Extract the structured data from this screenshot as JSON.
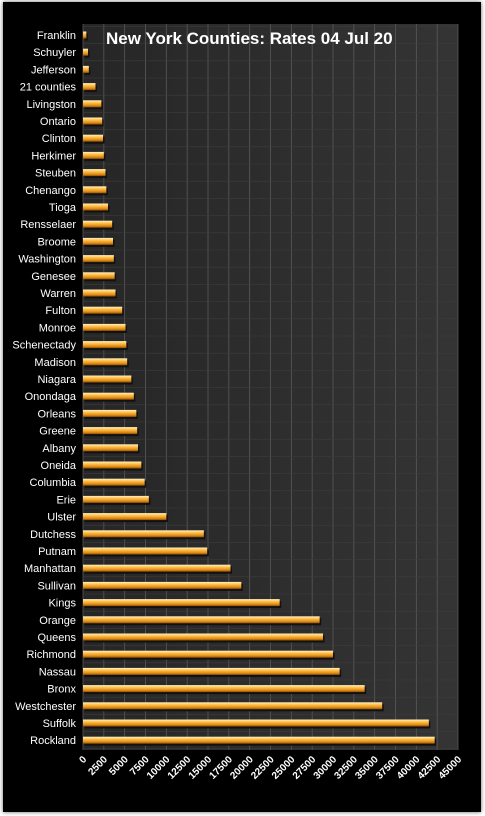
{
  "chart_data": {
    "type": "bar",
    "orientation": "horizontal",
    "title": "New York Counties: Rates 04 Jul 20",
    "xlabel": "",
    "ylabel": "",
    "xlim": [
      0,
      45000
    ],
    "x_ticks": [
      0,
      2500,
      5000,
      7500,
      10000,
      12500,
      15000,
      17500,
      20000,
      22500,
      25000,
      27500,
      30000,
      32500,
      35000,
      37500,
      40000,
      42500,
      45000
    ],
    "grid": true,
    "legend": "none",
    "bar_color": "#f5a623",
    "background_color": "#2b2b2b",
    "categories": [
      "Franklin",
      "Schuyler",
      "Jefferson",
      "21 counties",
      "Livingston",
      "Ontario",
      "Clinton",
      "Herkimer",
      "Steuben",
      "Chenango",
      "Tioga",
      "Rensselaer",
      "Broome",
      "Washington",
      "Genesee",
      "Warren",
      "Fulton",
      "Monroe",
      "Schenectady",
      "Madison",
      "Niagara",
      "Onondaga",
      "Orleans",
      "Greene",
      "Albany",
      "Oneida",
      "Columbia",
      "Erie",
      "Ulster",
      "Dutchess",
      "Putnam",
      "Manhattan",
      "Sullivan",
      "Kings",
      "Orange",
      "Queens",
      "Richmond",
      "Nassau",
      "Bronx",
      "Westchester",
      "Suffolk",
      "Rockland"
    ],
    "values": [
      400,
      600,
      700,
      1500,
      2200,
      2300,
      2400,
      2500,
      2700,
      2800,
      3000,
      3500,
      3600,
      3700,
      3800,
      3900,
      4700,
      5100,
      5200,
      5300,
      5800,
      6100,
      6400,
      6500,
      6600,
      7000,
      7400,
      7900,
      10000,
      14500,
      14900,
      17700,
      19000,
      23600,
      28400,
      28800,
      30000,
      30800,
      33800,
      35900,
      41500,
      42200
    ]
  }
}
